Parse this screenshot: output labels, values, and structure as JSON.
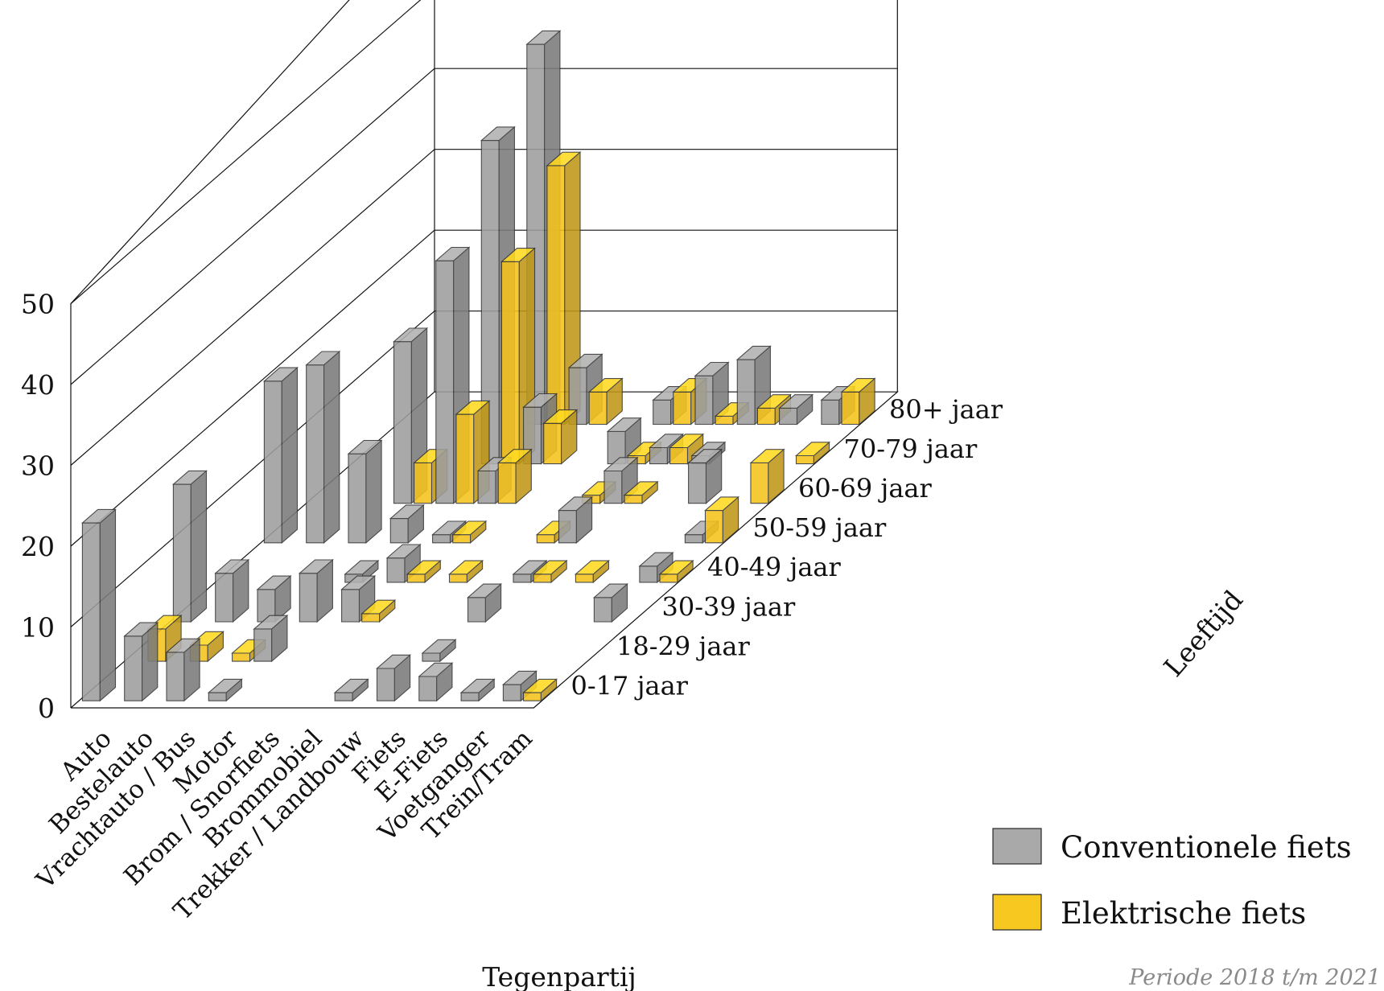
{
  "chart_data": {
    "type": "bar3d",
    "xlabel": "Tegenpartij",
    "zlabel": "Leeftijd",
    "note": "Periode 2018 t/m 2021",
    "zlim": [
      0,
      50
    ],
    "z_ticks": [
      "0",
      "10",
      "20",
      "30",
      "40",
      "50"
    ],
    "categories": [
      "Auto",
      "Bestelauto",
      "Vrachtauto / Bus",
      "Motor",
      "Brom / Snorfiets",
      "Brommobiel",
      "Trekker / Landbouw",
      "Fiets",
      "E-Fiets",
      "Voetganger",
      "Trein/Tram"
    ],
    "age_groups": [
      "0-17 jaar",
      "18-29 jaar",
      "30-39 jaar",
      "40-49 jaar",
      "50-59 jaar",
      "60-69 jaar",
      "70-79 jaar",
      "80+ jaar"
    ],
    "legend": {
      "position": "bottom-right"
    },
    "series": [
      {
        "name": "Conventionele fiets",
        "color": "#9e9e9e",
        "values": [
          [
            22,
            8,
            6,
            1,
            0,
            0,
            1,
            4,
            3,
            1,
            2
          ],
          [
            0,
            0,
            0,
            4,
            0,
            0,
            0,
            1,
            0,
            0,
            0
          ],
          [
            17,
            6,
            4,
            6,
            4,
            0,
            0,
            3,
            0,
            0,
            3
          ],
          [
            0,
            0,
            0,
            1,
            3,
            0,
            0,
            1,
            0,
            0,
            2
          ],
          [
            20,
            22,
            11,
            3,
            1,
            0,
            0,
            4,
            0,
            0,
            1
          ],
          [
            0,
            0,
            20,
            30,
            4,
            0,
            0,
            4,
            0,
            5,
            0
          ],
          [
            0,
            0,
            0,
            40,
            7,
            0,
            4,
            2,
            1,
            0,
            0
          ],
          [
            0,
            0,
            0,
            47,
            7,
            0,
            3,
            6,
            8,
            2,
            3
          ]
        ]
      },
      {
        "name": "Elektrische fiets",
        "color": "#f5c21c",
        "values": [
          [
            0,
            0,
            0,
            0,
            0,
            0,
            0,
            0,
            0,
            0,
            1
          ],
          [
            4,
            2,
            1,
            0,
            0,
            0,
            0,
            0,
            0,
            0,
            0
          ],
          [
            0,
            0,
            0,
            0,
            1,
            0,
            0,
            0,
            0,
            0,
            0
          ],
          [
            0,
            0,
            0,
            0,
            1,
            1,
            0,
            1,
            1,
            0,
            1
          ],
          [
            0,
            0,
            0,
            0,
            1,
            0,
            1,
            0,
            0,
            0,
            4
          ],
          [
            0,
            0,
            5,
            11,
            5,
            0,
            1,
            1,
            0,
            0,
            5
          ],
          [
            0,
            0,
            0,
            25,
            5,
            0,
            1,
            2,
            0,
            0,
            1
          ],
          [
            0,
            0,
            0,
            32,
            4,
            0,
            4,
            1,
            2,
            0,
            4
          ]
        ]
      }
    ]
  }
}
